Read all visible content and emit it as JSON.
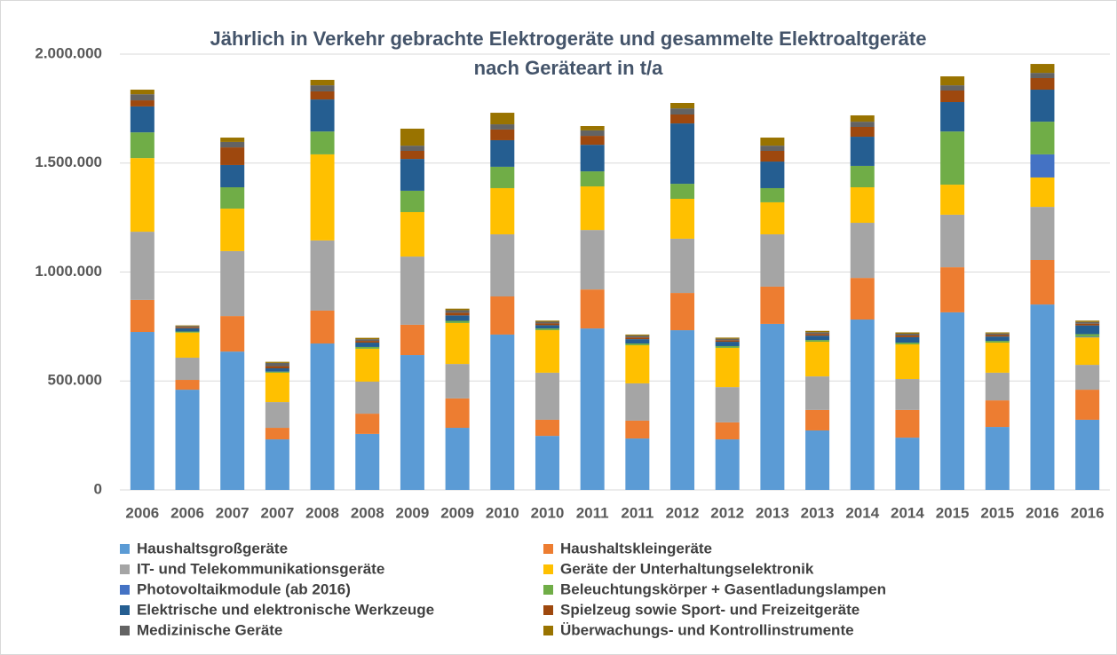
{
  "chart_data": {
    "type": "stacked_bar",
    "title": "Jährlich in Verkehr gebrachte Elektrogeräte und gesammelte Elektroaltgeräte",
    "subtitle": "nach Geräteart in t/a",
    "categories": [
      "2006",
      "2006",
      "2007",
      "2007",
      "2008",
      "2008",
      "2009",
      "2009",
      "2010",
      "2010",
      "2011",
      "2011",
      "2012",
      "2012",
      "2013",
      "2013",
      "2014",
      "2014",
      "2015",
      "2015",
      "2016",
      "2016"
    ],
    "ylim": [
      0,
      2000000
    ],
    "yticks": [
      0,
      {
        "value": 500000,
        "label": "500.000"
      },
      {
        "value": 1000000,
        "label": "1.000.000"
      },
      {
        "value": 1500000,
        "label": "1.500.000"
      },
      {
        "value": 2000000,
        "label": "2.000.000"
      }
    ],
    "grid": true,
    "series": [
      {
        "name": "Haushaltsgroßgeräte",
        "color": "#5b9bd5",
        "values": [
          725000,
          460000,
          635000,
          232000,
          672000,
          257000,
          619000,
          285000,
          713000,
          248000,
          741000,
          236000,
          733000,
          232000,
          762000,
          273000,
          782000,
          240000,
          815000,
          289000,
          851000,
          322000
        ]
      },
      {
        "name": "Haushaltskleingeräte",
        "color": "#ed7d31",
        "values": [
          147000,
          45000,
          163000,
          53000,
          151000,
          93000,
          139000,
          135000,
          175000,
          74000,
          179000,
          82000,
          171000,
          78000,
          171000,
          94000,
          191000,
          127000,
          207000,
          122000,
          204000,
          138000
        ]
      },
      {
        "name": "IT- und Telekommunikationsgeräte",
        "color": "#a5a5a5",
        "values": [
          313000,
          102000,
          298000,
          118000,
          322000,
          147000,
          313000,
          158000,
          285000,
          216000,
          273000,
          171000,
          249000,
          162000,
          240000,
          154000,
          253000,
          142000,
          241000,
          127000,
          244000,
          114000
        ]
      },
      {
        "name": "Geräte der Unterhaltungselektronik",
        "color": "#ffc000",
        "values": [
          338000,
          115000,
          195000,
          135000,
          395000,
          151000,
          204000,
          188000,
          212000,
          195000,
          200000,
          175000,
          183000,
          180000,
          147000,
          159000,
          163000,
          159000,
          138000,
          138000,
          135000,
          126000
        ]
      },
      {
        "name": "Photovoltaikmodule (ab 2016)",
        "color": "#4472c4",
        "values": [
          0,
          0,
          0,
          0,
          0,
          0,
          0,
          0,
          0,
          0,
          0,
          0,
          0,
          0,
          0,
          0,
          0,
          0,
          0,
          0,
          106000,
          3000
        ]
      },
      {
        "name": "Beleuchtungskörper + Gasentladungslampen",
        "color": "#70ad47",
        "values": [
          118000,
          5000,
          98000,
          5000,
          105000,
          8000,
          98000,
          10000,
          98000,
          8000,
          69000,
          8000,
          69000,
          8000,
          65000,
          8000,
          98000,
          8000,
          244000,
          8000,
          150000,
          12000
        ]
      },
      {
        "name": "Elektrische und elektronische Werkzeuge",
        "color": "#255e91",
        "values": [
          119000,
          15000,
          102000,
          15000,
          147000,
          20000,
          146000,
          25000,
          122000,
          15000,
          122000,
          20000,
          277000,
          20000,
          122000,
          20000,
          134000,
          25000,
          135000,
          20000,
          147000,
          40000
        ]
      },
      {
        "name": "Spielzeug sowie Sport- und Freizeitgeräte",
        "color": "#9e480e",
        "values": [
          28000,
          5000,
          81000,
          10000,
          37000,
          8000,
          37000,
          12000,
          49000,
          8000,
          41000,
          8000,
          41000,
          7000,
          49000,
          8000,
          45000,
          8000,
          53000,
          7000,
          53000,
          8000
        ]
      },
      {
        "name": "Medizinische Geräte",
        "color": "#636363",
        "values": [
          28000,
          5000,
          25000,
          15000,
          28000,
          8000,
          24000,
          12000,
          24000,
          8000,
          25000,
          8000,
          28000,
          7000,
          24000,
          8000,
          24000,
          8000,
          24000,
          7000,
          24000,
          8000
        ]
      },
      {
        "name": "Überwachungs- und Kontrollinstrumente",
        "color": "#997300",
        "values": [
          21000,
          3000,
          20000,
          5000,
          25000,
          6000,
          78000,
          7000,
          53000,
          5000,
          20000,
          5000,
          25000,
          5000,
          37000,
          6000,
          29000,
          6000,
          41000,
          5000,
          41000,
          6000
        ]
      }
    ]
  }
}
